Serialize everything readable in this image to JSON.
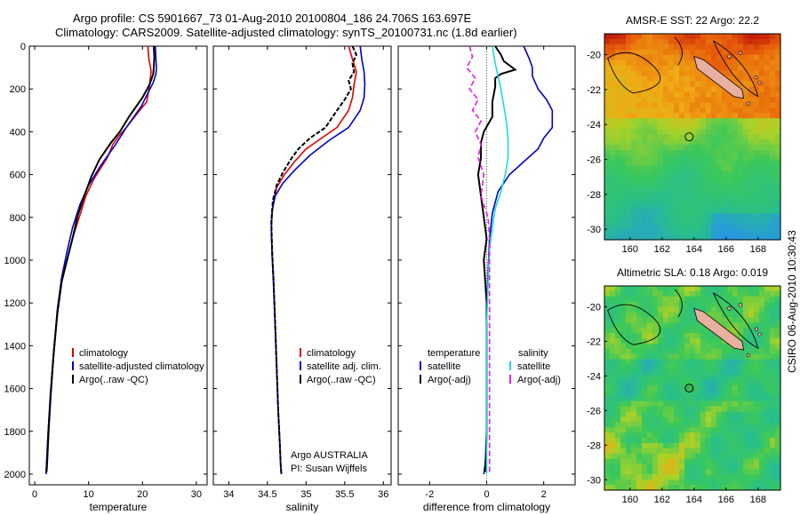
{
  "header": {
    "line1": "Argo profile: CS 5901667_73 01-Aug-2010 20100804_186 24.706S 163.697E",
    "line2": "Climatology: CARS2009. Satellite-adjusted climatology: synTS_20100731.nc (1.8d earlier)"
  },
  "stamp": "CSIRO 06-Aug-2010 10:30:43",
  "colors": {
    "climatology": "#e00000",
    "satellite": "#0000d0",
    "argo": "#000000",
    "satellite_sal": "#20d8e0",
    "argo_sal": "#e020e0",
    "land": "#e8b0a0"
  },
  "chart_data": [
    {
      "type": "line",
      "xlabel": "temperature",
      "ylabel": "",
      "xlim": [
        -1,
        32
      ],
      "ylim": [
        2050,
        0
      ],
      "xticks": [
        "0",
        "10",
        "20",
        "30"
      ],
      "yticks": [
        "0",
        "200",
        "400",
        "600",
        "800",
        "1000",
        "1200",
        "1400",
        "1600",
        "1800",
        "2000"
      ],
      "legend": [
        "climatology",
        "satellite-adjusted climatology",
        "Argo(..raw -QC)"
      ],
      "legend_placement": "lower-right",
      "series": [
        {
          "name": "climatology",
          "color": "#e00000",
          "x": [
            21.0,
            21.2,
            21.5,
            21.6,
            21.4,
            21.2,
            20.8,
            19.5,
            17.0,
            15.6,
            14.5,
            13.5,
            11.0,
            9.5,
            8.5,
            7.0,
            6.0,
            5.0,
            4.2,
            3.5,
            2.9,
            2.5,
            2.2,
            2.1
          ],
          "y": [
            0,
            60,
            100,
            120,
            160,
            200,
            260,
            300,
            380,
            420,
            460,
            520,
            620,
            700,
            780,
            900,
            1000,
            1100,
            1250,
            1450,
            1650,
            1800,
            1950,
            2000
          ]
        },
        {
          "name": "satellite-adjusted climatology",
          "color": "#0000d0",
          "x": [
            22.4,
            22.5,
            22.6,
            22.5,
            22.0,
            21.0,
            19.8,
            17.0,
            15.0,
            12.2,
            10.0,
            8.4,
            7.0,
            6.0,
            5.0,
            4.2,
            3.5,
            2.9,
            2.5,
            2.2,
            2.1
          ],
          "y": [
            0,
            60,
            100,
            130,
            170,
            220,
            280,
            380,
            460,
            560,
            650,
            740,
            850,
            960,
            1080,
            1230,
            1430,
            1630,
            1800,
            1950,
            2000
          ]
        },
        {
          "name": "Argo(..raw -QC)",
          "color": "#000000",
          "x": [
            22.1,
            22.2,
            22.1,
            22.0,
            21.3,
            20.0,
            17.5,
            15.8,
            14.2,
            12.0,
            10.5,
            9.2,
            8.0,
            7.0,
            6.0,
            5.0,
            4.2,
            3.5,
            3.0,
            2.6,
            2.3,
            2.2
          ],
          "y": [
            0,
            50,
            100,
            130,
            180,
            240,
            330,
            400,
            450,
            530,
            610,
            700,
            790,
            900,
            1000,
            1100,
            1250,
            1440,
            1620,
            1790,
            1950,
            1990
          ]
        }
      ]
    },
    {
      "type": "line",
      "xlabel": "salinity",
      "ylabel": "",
      "xlim": [
        33.8,
        36.1
      ],
      "ylim": [
        2050,
        0
      ],
      "xticks": [
        "34",
        "34.5",
        "35",
        "35.5",
        "36"
      ],
      "legend": [
        "climatology",
        "satellite adj. clim.",
        "Argo(..raw -QC)"
      ],
      "legend_placement": "lower-right",
      "annotation": [
        "Argo AUSTRALIA",
        "PI: Susan Wijffels"
      ],
      "series": [
        {
          "name": "climatology",
          "color": "#e00000",
          "x": [
            35.55,
            35.6,
            35.65,
            35.62,
            35.6,
            35.55,
            35.4,
            35.2,
            35.0,
            34.85,
            34.72,
            34.62,
            34.57,
            34.55,
            34.56,
            34.58,
            34.6,
            34.62,
            34.64,
            34.66,
            34.67,
            34.68
          ],
          "y": [
            0,
            60,
            120,
            180,
            240,
            300,
            380,
            430,
            480,
            540,
            600,
            660,
            740,
            840,
            960,
            1100,
            1300,
            1500,
            1700,
            1850,
            1950,
            2000
          ]
        },
        {
          "name": "satellite adj. clim.",
          "color": "#0000d0",
          "x": [
            35.7,
            35.72,
            35.75,
            35.76,
            35.75,
            35.7,
            35.55,
            35.3,
            35.05,
            34.85,
            34.7,
            34.6,
            34.56,
            34.55,
            34.56,
            34.58,
            34.6,
            34.62,
            34.64,
            34.66,
            34.67,
            34.68
          ],
          "y": [
            0,
            60,
            120,
            180,
            240,
            300,
            380,
            440,
            510,
            580,
            640,
            700,
            770,
            860,
            980,
            1120,
            1320,
            1520,
            1720,
            1860,
            1950,
            2000
          ]
        },
        {
          "name": "Argo(..raw -QC)",
          "color": "#000000",
          "x": [
            35.6,
            35.65,
            35.6,
            35.62,
            35.55,
            35.58,
            35.5,
            35.4,
            35.25,
            35.05,
            34.9,
            34.8,
            34.7,
            34.62,
            34.57,
            34.55,
            34.56,
            34.58,
            34.6,
            34.62,
            34.64,
            34.66,
            34.67,
            34.68
          ],
          "y": [
            0,
            40,
            80,
            120,
            160,
            200,
            250,
            300,
            380,
            430,
            480,
            530,
            590,
            650,
            720,
            820,
            950,
            1100,
            1300,
            1500,
            1700,
            1860,
            1950,
            2000
          ]
        }
      ]
    },
    {
      "type": "line",
      "xlabel": "difference from climatology",
      "ylabel": "",
      "xlim": [
        -3.1,
        3.1
      ],
      "ylim": [
        2050,
        0
      ],
      "xticks": [
        "-2",
        "0",
        "2"
      ],
      "legend": [
        "temperature",
        "satellite",
        "Argo(-adj)",
        "salinity",
        "satellite",
        "Argo(-adj)"
      ],
      "legend_placement": "lower-center",
      "series": [
        {
          "name": "temperature satellite",
          "color": "#0000d0",
          "x": [
            1.3,
            1.5,
            1.6,
            1.6,
            1.8,
            2.1,
            2.3,
            2.3,
            2.0,
            1.8,
            1.3,
            0.8,
            0.4,
            0.2,
            0.1,
            0.05,
            0.0,
            0.0,
            0.0,
            0.0,
            -0.05,
            -0.1
          ],
          "y": [
            0,
            60,
            100,
            140,
            200,
            250,
            300,
            380,
            430,
            480,
            540,
            600,
            680,
            780,
            900,
            1050,
            1250,
            1450,
            1650,
            1850,
            1950,
            2000
          ]
        },
        {
          "name": "temperature Argo(-adj)",
          "color": "#000000",
          "x": [
            0.3,
            0.5,
            0.6,
            1.0,
            0.5,
            0.3,
            0.3,
            0.2,
            0.2,
            -0.1,
            -0.2,
            -0.2,
            -0.3,
            -0.2,
            -0.1,
            0.0,
            -0.1,
            0.0,
            0.0,
            0.0,
            0.0,
            -0.05
          ],
          "y": [
            0,
            40,
            70,
            110,
            130,
            150,
            190,
            260,
            330,
            400,
            450,
            520,
            600,
            700,
            800,
            900,
            1000,
            1200,
            1400,
            1600,
            1800,
            1990
          ]
        },
        {
          "name": "salinity satellite",
          "color": "#20d8e0",
          "x": [
            0.2,
            0.3,
            0.4,
            0.5,
            0.6,
            0.7,
            0.75,
            0.75,
            0.65,
            0.5,
            0.3,
            0.2,
            0.1,
            0.05,
            0.0,
            0.0,
            0.0,
            0.0
          ],
          "y": [
            0,
            80,
            140,
            200,
            280,
            360,
            440,
            520,
            600,
            680,
            760,
            850,
            950,
            1100,
            1300,
            1500,
            1750,
            2000
          ]
        },
        {
          "name": "salinity Argo(-adj)",
          "color": "#e020e0",
          "x": [
            -0.6,
            -0.5,
            -0.7,
            -0.4,
            -0.6,
            -0.3,
            -0.5,
            -0.2,
            -0.4,
            -0.2,
            -0.3,
            -0.1,
            -0.2,
            0.05,
            0.1,
            0.1,
            0.1,
            0.1,
            0.1
          ],
          "y": [
            0,
            50,
            100,
            150,
            200,
            250,
            300,
            350,
            400,
            460,
            520,
            600,
            700,
            800,
            900,
            1100,
            1400,
            1700,
            1990
          ]
        }
      ]
    },
    {
      "type": "heatmap",
      "title": "AMSR-E SST: 22 Argo: 22.2",
      "xlim": [
        158.4,
        169.4
      ],
      "ylim": [
        -30.6,
        -18.8
      ],
      "xticks": [
        "160",
        "162",
        "164",
        "166",
        "168"
      ],
      "yticks": [
        "-20",
        "-22",
        "-24",
        "-26",
        "-28",
        "-30"
      ],
      "argo_position": {
        "lon": 163.697,
        "lat": -24.706
      }
    },
    {
      "type": "heatmap",
      "title": "Altimetric SLA: 0.18 Argo: 0.019",
      "xlim": [
        158.4,
        169.4
      ],
      "ylim": [
        -30.6,
        -18.8
      ],
      "xticks": [
        "160",
        "162",
        "164",
        "166",
        "168"
      ],
      "yticks": [
        "-20",
        "-22",
        "-24",
        "-26",
        "-28",
        "-30"
      ],
      "argo_position": {
        "lon": 163.697,
        "lat": -24.706
      }
    }
  ]
}
